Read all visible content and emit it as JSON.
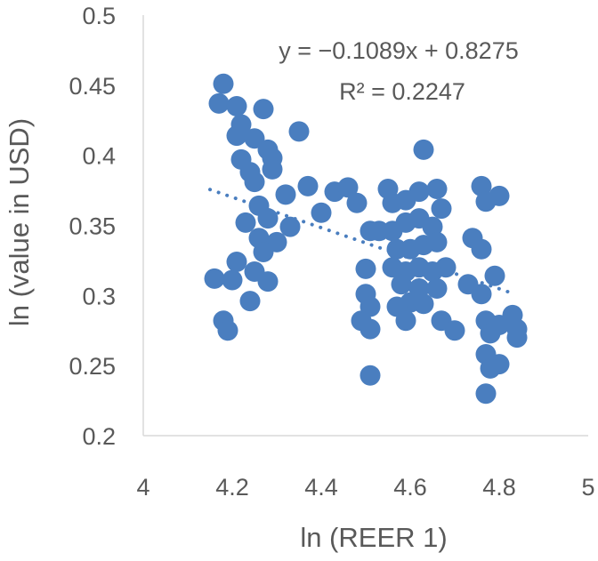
{
  "chart_data": {
    "type": "scatter",
    "title": "",
    "xlabel": "ln (REER 1)",
    "ylabel": "ln (value in USD)",
    "xlim": [
      4,
      5
    ],
    "ylim": [
      0.2,
      0.5
    ],
    "xticks": [
      "4",
      "4.2",
      "4.4",
      "4.6",
      "4.8",
      "5"
    ],
    "yticks": [
      "0.2",
      "0.25",
      "0.3",
      "0.35",
      "0.4",
      "0.45",
      "0.5"
    ],
    "grid": false,
    "legend": "none",
    "marker_color": "#4a7ebf",
    "trendline": {
      "slope": -0.1089,
      "intercept": 0.8275,
      "x_range": [
        4.15,
        4.82
      ],
      "style": "dotted"
    },
    "annotations": {
      "equation": "y = −0.1089x + 0.8275",
      "r_squared": "R² = 0.2247"
    },
    "points": [
      [
        4.18,
        0.451
      ],
      [
        4.17,
        0.437
      ],
      [
        4.21,
        0.435
      ],
      [
        4.27,
        0.433
      ],
      [
        4.22,
        0.422
      ],
      [
        4.21,
        0.414
      ],
      [
        4.25,
        0.412
      ],
      [
        4.28,
        0.404
      ],
      [
        4.22,
        0.397
      ],
      [
        4.29,
        0.398
      ],
      [
        4.24,
        0.388
      ],
      [
        4.29,
        0.39
      ],
      [
        4.25,
        0.381
      ],
      [
        4.32,
        0.372
      ],
      [
        4.26,
        0.364
      ],
      [
        4.28,
        0.355
      ],
      [
        4.23,
        0.352
      ],
      [
        4.26,
        0.341
      ],
      [
        4.3,
        0.338
      ],
      [
        4.27,
        0.331
      ],
      [
        4.35,
        0.417
      ],
      [
        4.37,
        0.378
      ],
      [
        4.4,
        0.359
      ],
      [
        4.33,
        0.349
      ],
      [
        4.16,
        0.312
      ],
      [
        4.2,
        0.311
      ],
      [
        4.21,
        0.324
      ],
      [
        4.25,
        0.317
      ],
      [
        4.28,
        0.31
      ],
      [
        4.24,
        0.296
      ],
      [
        4.18,
        0.282
      ],
      [
        4.19,
        0.275
      ],
      [
        4.43,
        0.374
      ],
      [
        4.46,
        0.377
      ],
      [
        4.48,
        0.366
      ],
      [
        4.51,
        0.346
      ],
      [
        4.5,
        0.319
      ],
      [
        4.5,
        0.301
      ],
      [
        4.51,
        0.292
      ],
      [
        4.49,
        0.282
      ],
      [
        4.51,
        0.276
      ],
      [
        4.51,
        0.243
      ],
      [
        4.55,
        0.376
      ],
      [
        4.56,
        0.366
      ],
      [
        4.59,
        0.368
      ],
      [
        4.62,
        0.374
      ],
      [
        4.66,
        0.376
      ],
      [
        4.67,
        0.362
      ],
      [
        4.63,
        0.404
      ],
      [
        4.53,
        0.346
      ],
      [
        4.56,
        0.346
      ],
      [
        4.59,
        0.352
      ],
      [
        4.62,
        0.355
      ],
      [
        4.65,
        0.349
      ],
      [
        4.57,
        0.333
      ],
      [
        4.6,
        0.333
      ],
      [
        4.63,
        0.336
      ],
      [
        4.66,
        0.338
      ],
      [
        4.56,
        0.32
      ],
      [
        4.59,
        0.317
      ],
      [
        4.62,
        0.32
      ],
      [
        4.65,
        0.317
      ],
      [
        4.68,
        0.32
      ],
      [
        4.58,
        0.308
      ],
      [
        4.62,
        0.305
      ],
      [
        4.66,
        0.305
      ],
      [
        4.6,
        0.295
      ],
      [
        4.57,
        0.292
      ],
      [
        4.63,
        0.294
      ],
      [
        4.59,
        0.282
      ],
      [
        4.67,
        0.282
      ],
      [
        4.73,
        0.308
      ],
      [
        4.76,
        0.301
      ],
      [
        4.7,
        0.275
      ],
      [
        4.76,
        0.378
      ],
      [
        4.8,
        0.371
      ],
      [
        4.77,
        0.367
      ],
      [
        4.74,
        0.341
      ],
      [
        4.76,
        0.333
      ],
      [
        4.79,
        0.314
      ],
      [
        4.77,
        0.282
      ],
      [
        4.8,
        0.279
      ],
      [
        4.83,
        0.286
      ],
      [
        4.84,
        0.276
      ],
      [
        4.84,
        0.27
      ],
      [
        4.78,
        0.273
      ],
      [
        4.77,
        0.258
      ],
      [
        4.8,
        0.251
      ],
      [
        4.78,
        0.248
      ],
      [
        4.77,
        0.23
      ]
    ]
  }
}
